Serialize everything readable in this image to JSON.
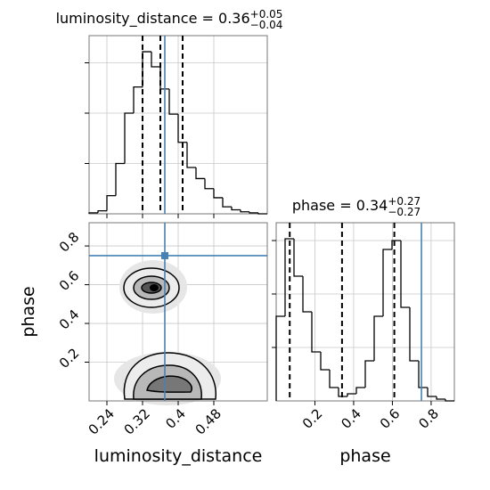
{
  "chart_data": [
    {
      "type": "histogram",
      "title": "luminosity_distance = 0.36",
      "title_upper": "+0.05",
      "title_lower": "−0.04",
      "bins": [
        0.2,
        0.22,
        0.24,
        0.26,
        0.28,
        0.3,
        0.32,
        0.34,
        0.36,
        0.38,
        0.4,
        0.42,
        0.44,
        0.46,
        0.48,
        0.5,
        0.52,
        0.54,
        0.56,
        0.58,
        0.6
      ],
      "counts": [
        1,
        3,
        18,
        50,
        100,
        126,
        161,
        146,
        124,
        99,
        71,
        46,
        35,
        25,
        16,
        7,
        4,
        2,
        1,
        0
      ],
      "xlim": [
        0.2,
        0.6
      ],
      "ylim": [
        0,
        177
      ],
      "xticks": [
        0.24,
        0.32,
        0.4,
        0.48
      ],
      "yticks": [
        50,
        100,
        150
      ],
      "show_tick_labels": false,
      "quantiles": [
        0.32,
        0.36,
        0.41
      ],
      "truth": 0.37,
      "color": "#000000",
      "truth_color": "#4682b4",
      "grid": true
    },
    {
      "type": "contour",
      "xlabel": "luminosity_distance",
      "ylabel": "phase",
      "xlim": [
        0.2,
        0.6
      ],
      "ylim": [
        0,
        0.92
      ],
      "xticks": [
        0.24,
        0.32,
        0.4,
        0.48
      ],
      "yticks": [
        0.2,
        0.4,
        0.6,
        0.8
      ],
      "truth": [
        0.37,
        0.75
      ],
      "truth_color": "#4682b4",
      "grid": true
    },
    {
      "type": "histogram",
      "title": "phase = 0.34",
      "title_upper": "+0.27",
      "title_lower": "−0.27",
      "xlabel": "phase",
      "bins": [
        0,
        0.046,
        0.092,
        0.138,
        0.184,
        0.23,
        0.276,
        0.322,
        0.368,
        0.414,
        0.46,
        0.506,
        0.552,
        0.598,
        0.644,
        0.69,
        0.736,
        0.782,
        0.828,
        0.874,
        0.92
      ],
      "counts": [
        95,
        182,
        140,
        100,
        55,
        35,
        15,
        5,
        8,
        15,
        45,
        95,
        170,
        180,
        105,
        45,
        15,
        5,
        2,
        0
      ],
      "xlim": [
        0,
        0.92
      ],
      "ylim": [
        0,
        200
      ],
      "xticks": [
        0.2,
        0.4,
        0.6,
        0.8
      ],
      "yticks": [
        60,
        120,
        180
      ],
      "show_tick_labels": false,
      "quantiles": [
        0.07,
        0.34,
        0.61
      ],
      "truth": 0.75,
      "color": "#000000",
      "truth_color": "#4682b4",
      "grid": true
    }
  ]
}
